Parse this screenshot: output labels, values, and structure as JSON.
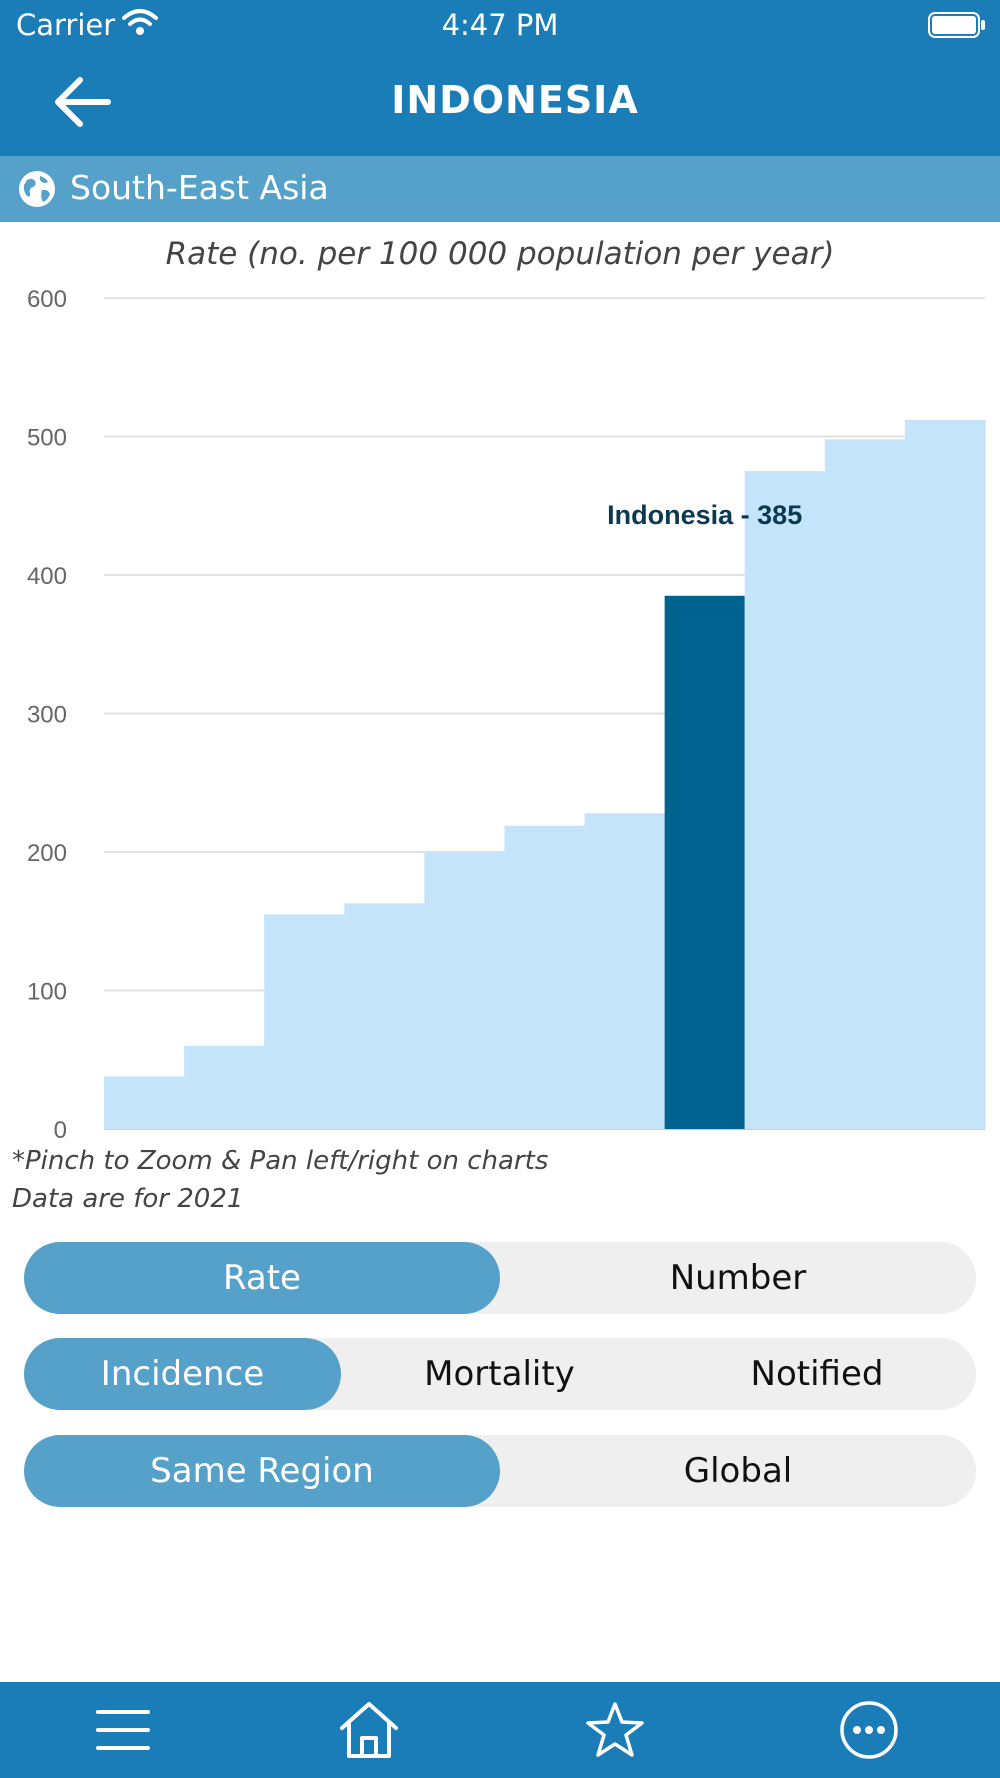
{
  "status_bar": {
    "carrier": "Carrier",
    "time": "4:47 PM"
  },
  "header": {
    "title": "INDONESIA",
    "back_icon": "arrow-left-icon"
  },
  "region": {
    "name": "South-East Asia",
    "icon": "globe-icon"
  },
  "chart_data": {
    "type": "bar",
    "title": "Rate (no. per 100 000 population per year)",
    "xlabel": "",
    "ylabel": "Rate (no. per 100 000 population per year)",
    "ylim": [
      0,
      600
    ],
    "yticks": [
      0,
      100,
      200,
      300,
      400,
      500,
      600
    ],
    "grid": true,
    "values": [
      38,
      60,
      155,
      163,
      200,
      219,
      228,
      385,
      475,
      498,
      512
    ],
    "highlight_index": 7,
    "highlight_label": "Indonesia - 385",
    "colors": {
      "bar": "#c4e5f9",
      "highlight": "#00628f",
      "label": "#0b3952"
    }
  },
  "footnotes": {
    "pinch": "*Pinch to Zoom & Pan left/right on charts",
    "data_year": "Data are for 2021"
  },
  "controls": {
    "measure": {
      "options": [
        "Rate",
        "Number"
      ],
      "selected": "Rate"
    },
    "indicator": {
      "options": [
        "Incidence",
        "Mortality",
        "Notified"
      ],
      "selected": "Incidence"
    },
    "scope": {
      "options": [
        "Same Region",
        "Global"
      ],
      "selected": "Same Region"
    }
  },
  "tab_bar": {
    "icons": [
      "menu-icon",
      "home-icon",
      "star-icon",
      "more-icon"
    ]
  },
  "colors": {
    "primary": "#1b7db8",
    "secondary": "#56a1ca",
    "segment_bg": "#efefef"
  }
}
